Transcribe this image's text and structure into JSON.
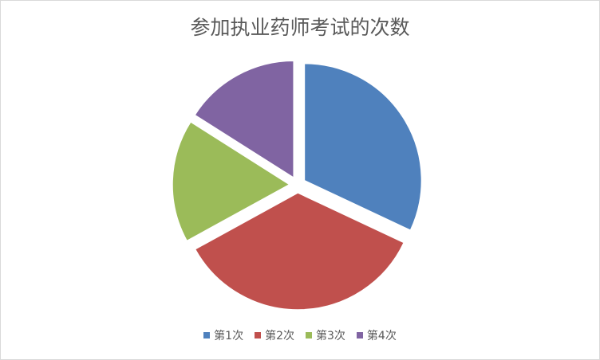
{
  "chart_data": {
    "type": "pie",
    "title": "参加执业药师考试的次数",
    "categories": [
      "第1次",
      "第2次",
      "第3次",
      "第4次"
    ],
    "values": [
      32,
      35,
      17,
      16
    ],
    "colors": [
      "#4f81bd",
      "#c0504d",
      "#9bbb59",
      "#8064a2"
    ],
    "exploded": true,
    "legend_position": "bottom"
  }
}
